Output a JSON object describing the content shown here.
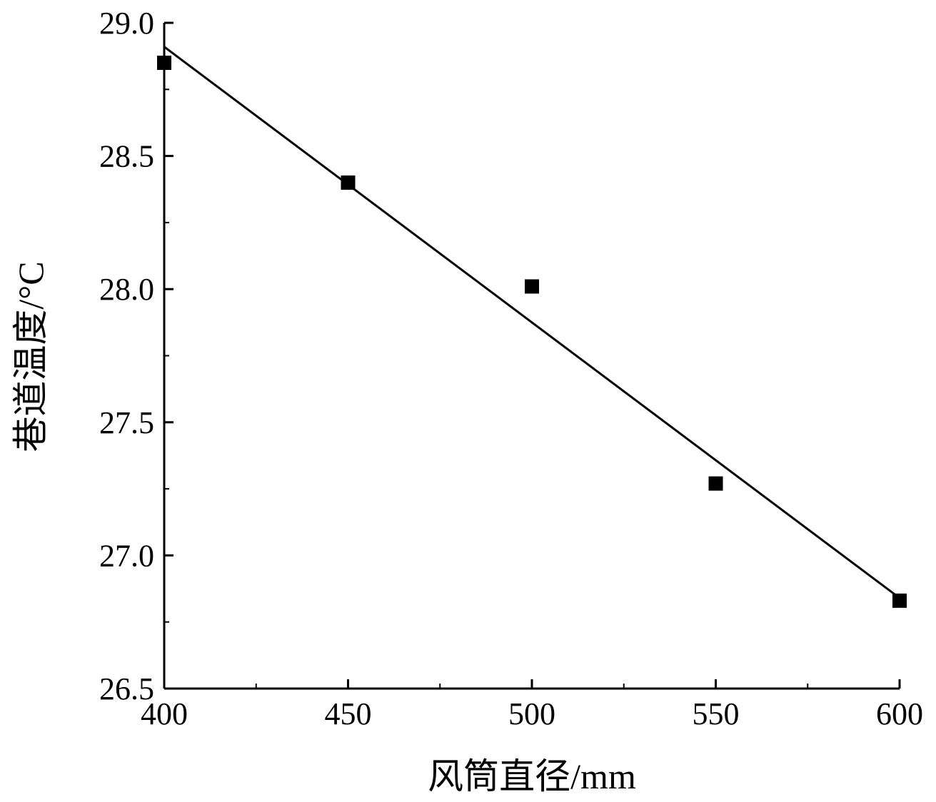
{
  "chart_data": {
    "type": "scatter",
    "xlabel": "风筒直径/mm",
    "ylabel": "巷道温度/°C",
    "xlim": [
      400,
      600
    ],
    "ylim": [
      26.5,
      29.0
    ],
    "x_ticks": [
      400,
      450,
      500,
      550,
      600
    ],
    "y_ticks": [
      26.5,
      27.0,
      27.5,
      28.0,
      28.5,
      29.0
    ],
    "x_tick_labels": [
      "400",
      "450",
      "500",
      "550",
      "600"
    ],
    "y_tick_labels": [
      "26.5",
      "27.0",
      "27.5",
      "28.0",
      "28.5",
      "29.0"
    ],
    "series": [
      {
        "marker": "square",
        "color": "#000000",
        "x": [
          400,
          450,
          500,
          550,
          600
        ],
        "y": [
          28.85,
          28.4,
          28.01,
          27.27,
          26.83
        ]
      }
    ],
    "fit_line": {
      "color": "#000000",
      "x": [
        400,
        600
      ],
      "y": [
        28.91,
        26.84
      ]
    },
    "grid": false,
    "legend": "none"
  }
}
